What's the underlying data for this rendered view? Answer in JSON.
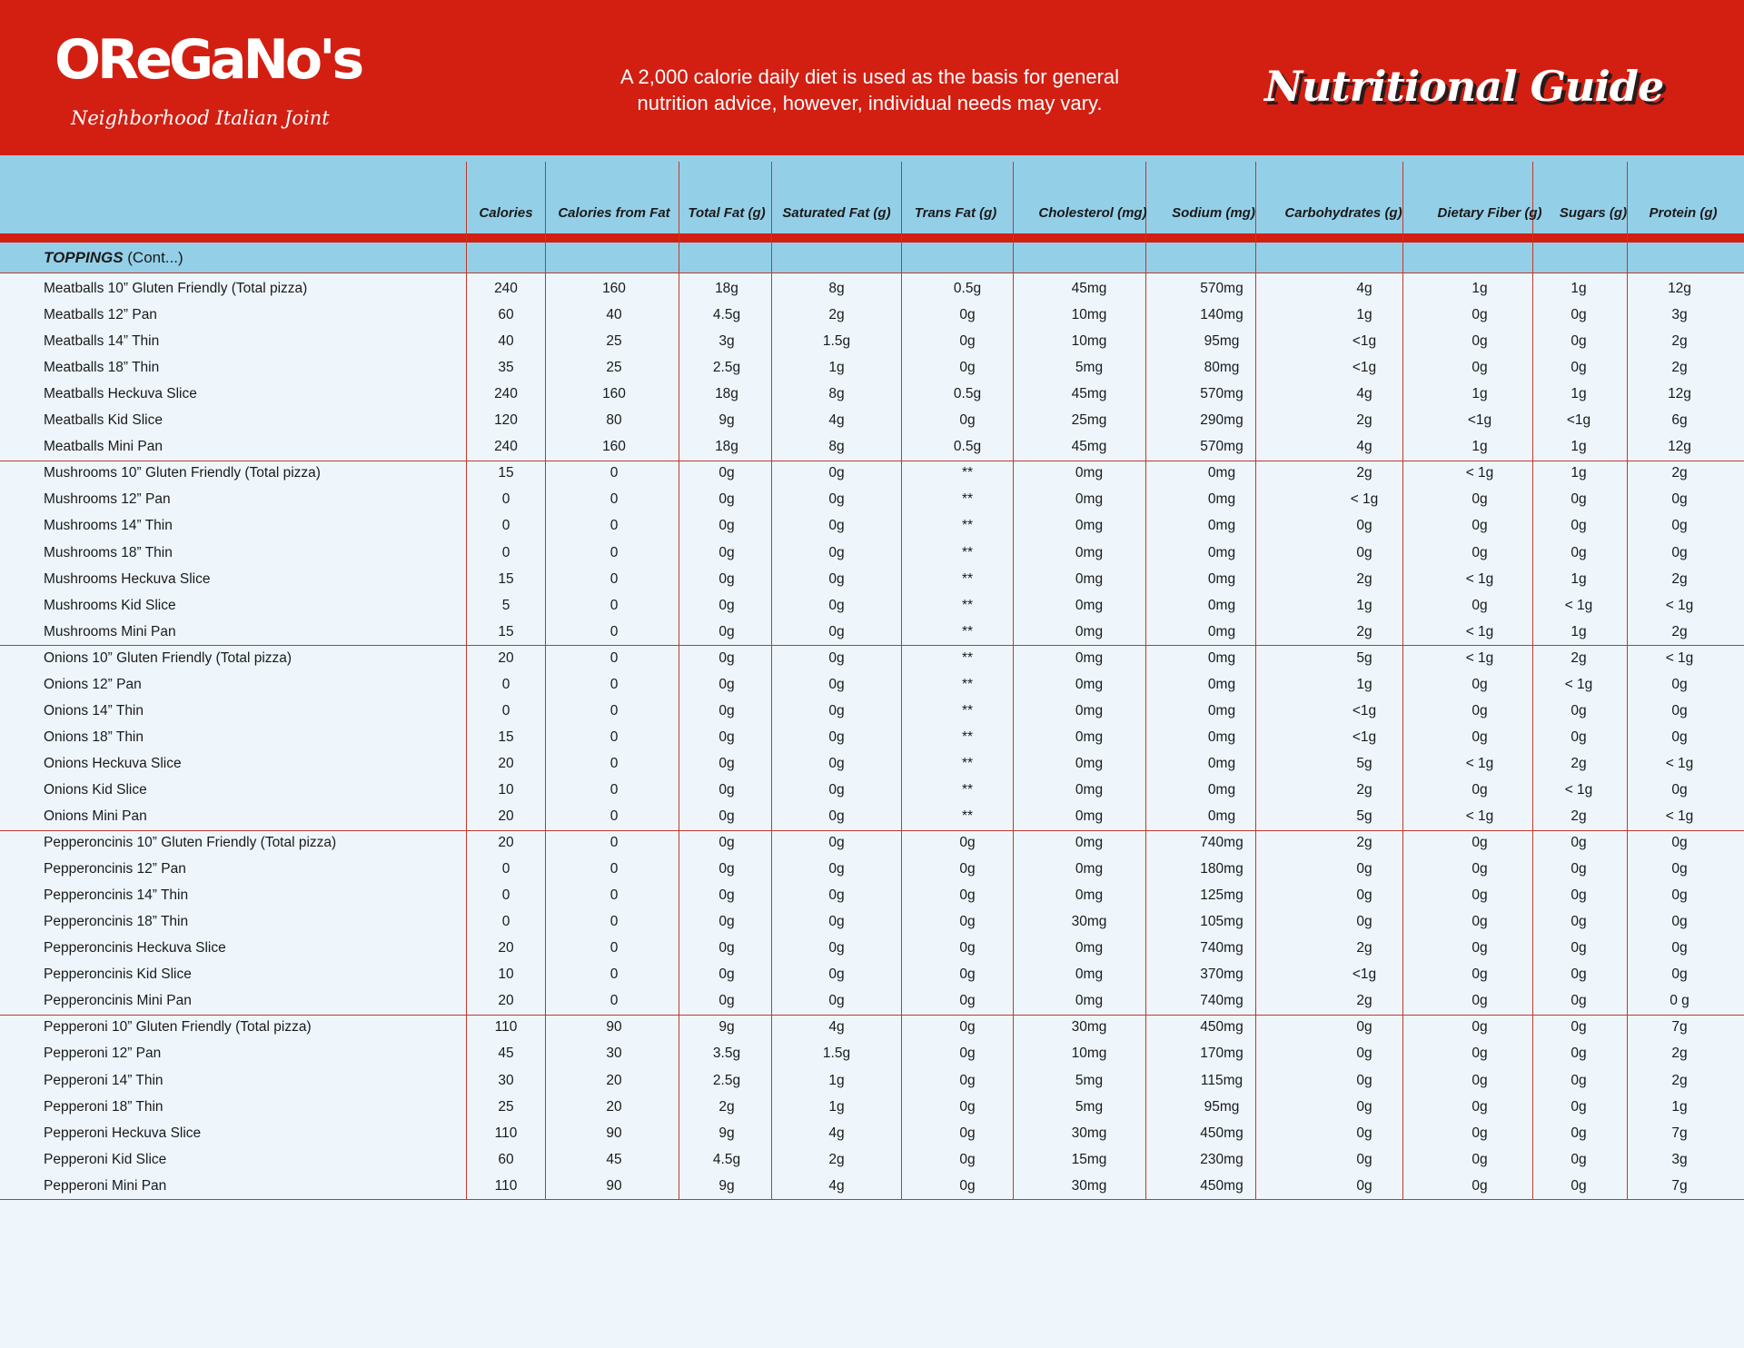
{
  "header": {
    "logo_text": "OReGaNo's",
    "logo_subtitle": "Neighborhood Italian Joint",
    "tagline_line1": "A 2,000 calorie daily diet is used as the basis for general",
    "tagline_line2": "nutrition advice, however, individual needs may vary.",
    "title": "Nutritional Guide"
  },
  "colors": {
    "brand_red": "#d21f12",
    "header_blue": "#94cfe8",
    "background": "#eef6fc"
  },
  "columns": [
    "Calories",
    "Calories from Fat",
    "Total Fat (g)",
    "Saturated Fat (g)",
    "Trans Fat (g)",
    "Cholesterol (mg)",
    "Sodium (mg)",
    "Carbohydrates (g)",
    "Dietary Fiber (g)",
    "Sugars (g)",
    "Protein (g)"
  ],
  "section": {
    "title": "TOPPINGS",
    "suffix": " (Cont...)"
  },
  "rows": [
    [
      "Meatballs 10” Gluten Friendly (Total pizza)",
      "240",
      "160",
      "18g",
      "8g",
      "0.5g",
      "45mg",
      "570mg",
      "4g",
      "1g",
      "1g",
      "12g"
    ],
    [
      "Meatballs 12” Pan",
      "60",
      "40",
      "4.5g",
      "2g",
      "0g",
      "10mg",
      "140mg",
      "1g",
      "0g",
      "0g",
      "3g"
    ],
    [
      "Meatballs 14” Thin",
      "40",
      "25",
      "3g",
      "1.5g",
      "0g",
      "10mg",
      "95mg",
      "<1g",
      "0g",
      "0g",
      "2g"
    ],
    [
      "Meatballs 18” Thin",
      "35",
      "25",
      "2.5g",
      "1g",
      "0g",
      "5mg",
      "80mg",
      "<1g",
      "0g",
      "0g",
      "2g"
    ],
    [
      "Meatballs Heckuva Slice",
      "240",
      "160",
      "18g",
      "8g",
      "0.5g",
      "45mg",
      "570mg",
      "4g",
      "1g",
      "1g",
      "12g"
    ],
    [
      "Meatballs Kid Slice",
      "120",
      "80",
      "9g",
      "4g",
      "0g",
      "25mg",
      "290mg",
      "2g",
      "<1g",
      "<1g",
      "6g"
    ],
    [
      "Meatballs Mini Pan",
      "240",
      "160",
      "18g",
      "8g",
      "0.5g",
      "45mg",
      "570mg",
      "4g",
      "1g",
      "1g",
      "12g"
    ],
    [
      "Mushrooms 10” Gluten Friendly (Total pizza)",
      "15",
      "0",
      "0g",
      "0g",
      "**",
      "0mg",
      "0mg",
      "2g",
      "< 1g",
      "1g",
      "2g"
    ],
    [
      "Mushrooms 12” Pan",
      "0",
      "0",
      "0g",
      "0g",
      "**",
      "0mg",
      "0mg",
      "< 1g",
      "0g",
      "0g",
      "0g"
    ],
    [
      "Mushrooms 14” Thin",
      "0",
      "0",
      "0g",
      "0g",
      "**",
      "0mg",
      "0mg",
      "0g",
      "0g",
      "0g",
      "0g"
    ],
    [
      "Mushrooms 18” Thin",
      "0",
      "0",
      "0g",
      "0g",
      "**",
      "0mg",
      "0mg",
      "0g",
      "0g",
      "0g",
      "0g"
    ],
    [
      "Mushrooms Heckuva Slice",
      "15",
      "0",
      "0g",
      "0g",
      "**",
      "0mg",
      "0mg",
      "2g",
      "< 1g",
      "1g",
      "2g"
    ],
    [
      "Mushrooms Kid Slice",
      "5",
      "0",
      "0g",
      "0g",
      "**",
      "0mg",
      "0mg",
      "1g",
      "0g",
      "< 1g",
      "< 1g"
    ],
    [
      "Mushrooms Mini Pan",
      "15",
      "0",
      "0g",
      "0g",
      "**",
      "0mg",
      "0mg",
      "2g",
      "< 1g",
      "1g",
      "2g"
    ],
    [
      "Onions 10” Gluten Friendly (Total pizza)",
      "20",
      "0",
      "0g",
      "0g",
      "**",
      "0mg",
      "0mg",
      "5g",
      "< 1g",
      "2g",
      "< 1g"
    ],
    [
      "Onions 12” Pan",
      "0",
      "0",
      "0g",
      "0g",
      "**",
      "0mg",
      "0mg",
      "1g",
      "0g",
      "< 1g",
      "0g"
    ],
    [
      "Onions 14” Thin",
      "0",
      "0",
      "0g",
      "0g",
      "**",
      "0mg",
      "0mg",
      "<1g",
      "0g",
      "0g",
      "0g"
    ],
    [
      "Onions 18” Thin",
      "15",
      "0",
      "0g",
      "0g",
      "**",
      "0mg",
      "0mg",
      "<1g",
      "0g",
      "0g",
      "0g"
    ],
    [
      "Onions Heckuva Slice",
      "20",
      "0",
      "0g",
      "0g",
      "**",
      "0mg",
      "0mg",
      "5g",
      "< 1g",
      "2g",
      "< 1g"
    ],
    [
      "Onions Kid Slice",
      "10",
      "0",
      "0g",
      "0g",
      "**",
      "0mg",
      "0mg",
      "2g",
      "0g",
      "< 1g",
      "0g"
    ],
    [
      "Onions Mini Pan",
      "20",
      "0",
      "0g",
      "0g",
      "**",
      "0mg",
      "0mg",
      "5g",
      "< 1g",
      "2g",
      "< 1g"
    ],
    [
      "Pepperoncinis 10” Gluten Friendly (Total pizza)",
      "20",
      "0",
      "0g",
      "0g",
      "0g",
      "0mg",
      "740mg",
      "2g",
      "0g",
      "0g",
      "0g"
    ],
    [
      "Pepperoncinis 12” Pan",
      "0",
      "0",
      "0g",
      "0g",
      "0g",
      "0mg",
      "180mg",
      "0g",
      "0g",
      "0g",
      "0g"
    ],
    [
      "Pepperoncinis 14” Thin",
      "0",
      "0",
      "0g",
      "0g",
      "0g",
      "0mg",
      "125mg",
      "0g",
      "0g",
      "0g",
      "0g"
    ],
    [
      "Pepperoncinis 18” Thin",
      "0",
      "0",
      "0g",
      "0g",
      "0g",
      "30mg",
      "105mg",
      "0g",
      "0g",
      "0g",
      "0g"
    ],
    [
      "Pepperoncinis Heckuva Slice",
      "20",
      "0",
      "0g",
      "0g",
      "0g",
      "0mg",
      "740mg",
      "2g",
      "0g",
      "0g",
      "0g"
    ],
    [
      "Pepperoncinis Kid Slice",
      "10",
      "0",
      "0g",
      "0g",
      "0g",
      "0mg",
      "370mg",
      "<1g",
      "0g",
      "0g",
      "0g"
    ],
    [
      "Pepperoncinis Mini Pan",
      "20",
      "0",
      "0g",
      "0g",
      "0g",
      "0mg",
      "740mg",
      "2g",
      "0g",
      "0g",
      "0 g"
    ],
    [
      "Pepperoni 10” Gluten Friendly (Total pizza)",
      "110",
      "90",
      "9g",
      "4g",
      "0g",
      "30mg",
      "450mg",
      "0g",
      "0g",
      "0g",
      "7g"
    ],
    [
      "Pepperoni 12” Pan",
      "45",
      "30",
      "3.5g",
      "1.5g",
      "0g",
      "10mg",
      "170mg",
      "0g",
      "0g",
      "0g",
      "2g"
    ],
    [
      "Pepperoni 14” Thin",
      "30",
      "20",
      "2.5g",
      "1g",
      "0g",
      "5mg",
      "115mg",
      "0g",
      "0g",
      "0g",
      "2g"
    ],
    [
      "Pepperoni 18” Thin",
      "25",
      "20",
      "2g",
      "1g",
      "0g",
      "5mg",
      "95mg",
      "0g",
      "0g",
      "0g",
      "1g"
    ],
    [
      "Pepperoni Heckuva Slice",
      "110",
      "90",
      "9g",
      "4g",
      "0g",
      "30mg",
      "450mg",
      "0g",
      "0g",
      "0g",
      "7g"
    ],
    [
      "Pepperoni Kid Slice",
      "60",
      "45",
      "4.5g",
      "2g",
      "0g",
      "15mg",
      "230mg",
      "0g",
      "0g",
      "0g",
      "3g"
    ],
    [
      "Pepperoni Mini Pan",
      "110",
      "90",
      "9g",
      "4g",
      "0g",
      "30mg",
      "450mg",
      "0g",
      "0g",
      "0g",
      "7g"
    ]
  ]
}
